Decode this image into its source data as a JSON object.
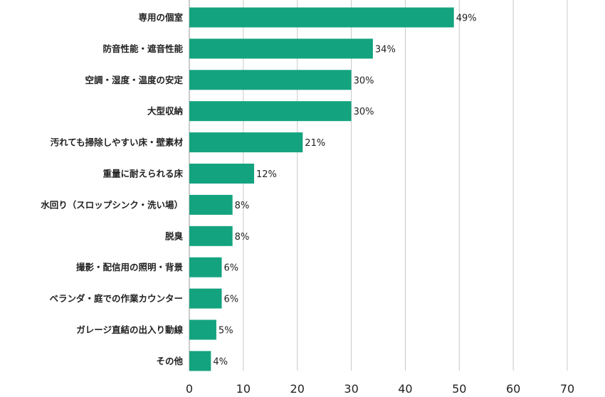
{
  "chart_data": {
    "type": "bar",
    "orientation": "horizontal",
    "categories": [
      "専用の個室",
      "防音性能・遮音性能",
      "空調・湿度・温度の安定",
      "大型収納",
      "汚れても掃除しやすい床・壁素材",
      "重量に耐えられる床",
      "水回り（スロップシンク・洗い場）",
      "脱臭",
      "撮影・配信用の照明・背景",
      "ベランダ・庭での作業カウンター",
      "ガレージ直結の出入り動線",
      "その他"
    ],
    "values": [
      49,
      34,
      30,
      30,
      21,
      12,
      8,
      8,
      6,
      6,
      5,
      4
    ],
    "value_labels": [
      "49%",
      "34%",
      "30%",
      "30%",
      "21%",
      "12%",
      "8%",
      "8%",
      "6%",
      "6%",
      "5%",
      "4%"
    ],
    "xlim": [
      0,
      70
    ],
    "xticks": [
      "0",
      "10",
      "20",
      "30",
      "40",
      "50",
      "60",
      "70"
    ],
    "grid": "vertical",
    "bar_color": "#14a37f",
    "grid_color": "#c8c8c8"
  }
}
